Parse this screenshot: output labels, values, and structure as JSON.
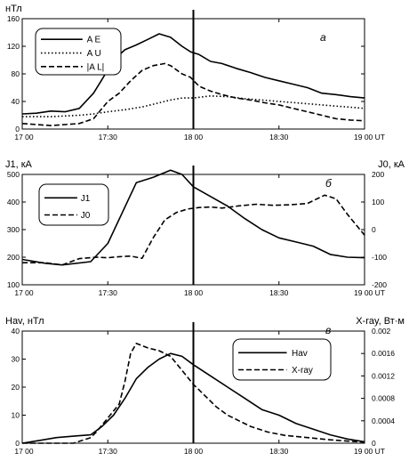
{
  "chart_data": [
    {
      "type": "line",
      "panel_label": "а",
      "ylabel": "нТл",
      "x_ticks": [
        "17 00",
        "17:30",
        "18 00",
        "18:30",
        "19 00 UT"
      ],
      "xlim": [
        0,
        120
      ],
      "ylim": [
        0,
        160
      ],
      "y_ticks": [
        "0",
        "40",
        "80",
        "120",
        "160"
      ],
      "y_tick_values": [
        0,
        40,
        80,
        120,
        160
      ],
      "legend": [
        "A E",
        "A U",
        "|A L|"
      ],
      "vertical_marker_x": 60,
      "series": [
        {
          "name": "A E",
          "style": "solid",
          "x": [
            0,
            5,
            10,
            15,
            20,
            25,
            28,
            32,
            36,
            40,
            44,
            48,
            52,
            56,
            59,
            62,
            66,
            70,
            75,
            80,
            85,
            90,
            95,
            100,
            105,
            110,
            115,
            120
          ],
          "y": [
            22,
            23,
            26,
            25,
            30,
            52,
            72,
            100,
            115,
            122,
            130,
            138,
            133,
            120,
            112,
            108,
            98,
            95,
            88,
            82,
            75,
            70,
            65,
            60,
            52,
            50,
            47,
            45
          ]
        },
        {
          "name": "A U",
          "style": "dotted",
          "x": [
            0,
            10,
            20,
            25,
            30,
            36,
            42,
            48,
            52,
            56,
            60,
            66,
            72,
            78,
            84,
            90,
            96,
            102,
            108,
            114,
            120
          ],
          "y": [
            18,
            18,
            20,
            22,
            25,
            28,
            32,
            38,
            42,
            45,
            45,
            48,
            47,
            44,
            42,
            40,
            38,
            36,
            34,
            32,
            30
          ]
        },
        {
          "name": "|A L|",
          "style": "dashed",
          "x": [
            0,
            10,
            20,
            25,
            30,
            34,
            38,
            42,
            46,
            50,
            52,
            56,
            59,
            62,
            66,
            70,
            75,
            80,
            85,
            90,
            95,
            100,
            105,
            110,
            115,
            120
          ],
          "y": [
            8,
            5,
            8,
            15,
            40,
            52,
            70,
            85,
            92,
            95,
            92,
            80,
            75,
            62,
            55,
            50,
            45,
            42,
            38,
            35,
            30,
            25,
            20,
            15,
            13,
            12
          ]
        }
      ]
    },
    {
      "type": "line",
      "panel_label": "б",
      "ylabel": "J1, кА",
      "ylabel_right": "J0, кА",
      "x_ticks": [
        "17 00",
        "17:30",
        "18 00",
        "18:30",
        "19 00 UT"
      ],
      "xlim": [
        0,
        120
      ],
      "ylim": [
        100,
        500
      ],
      "y_ticks": [
        "100",
        "200",
        "300",
        "400",
        "500"
      ],
      "y_tick_values": [
        100,
        200,
        300,
        400,
        500
      ],
      "ylim_right": [
        -200,
        200
      ],
      "y_ticks_right": [
        "-200",
        "-100",
        "0",
        "100",
        "200"
      ],
      "y_tick_values_right": [
        -200,
        -100,
        0,
        100,
        200
      ],
      "legend": [
        "J1",
        "J0"
      ],
      "vertical_marker_x": 60,
      "series": [
        {
          "name": "J1",
          "style": "solid",
          "axis": "left",
          "x": [
            0,
            8,
            14,
            24,
            30,
            40,
            46,
            52,
            56,
            60,
            66,
            72,
            78,
            84,
            90,
            96,
            102,
            108,
            114,
            120
          ],
          "y": [
            192,
            178,
            172,
            184,
            250,
            470,
            490,
            515,
            500,
            455,
            420,
            385,
            340,
            300,
            270,
            255,
            240,
            210,
            200,
            198
          ]
        },
        {
          "name": "J0",
          "style": "dashed",
          "axis": "right",
          "x": [
            0,
            8,
            14,
            20,
            26,
            30,
            34,
            38,
            42,
            46,
            50,
            54,
            58,
            62,
            66,
            70,
            76,
            82,
            88,
            94,
            100,
            106,
            110,
            114,
            120
          ],
          "y": [
            -120,
            -120,
            -128,
            -105,
            -100,
            -102,
            -98,
            -96,
            -104,
            -28,
            35,
            62,
            75,
            80,
            82,
            78,
            86,
            92,
            88,
            90,
            95,
            125,
            112,
            55,
            -20
          ]
        }
      ]
    },
    {
      "type": "line",
      "panel_label": "в",
      "ylabel": "Hav, нТл",
      "ylabel_right": "X-ray, Вт·м",
      "x_ticks": [
        "17 00",
        "17:30",
        "18 00",
        "18:30",
        "19 00 UT"
      ],
      "xlim": [
        0,
        120
      ],
      "ylim": [
        0,
        40
      ],
      "y_ticks": [
        "0",
        "10",
        "20",
        "30",
        "40"
      ],
      "y_tick_values": [
        0,
        10,
        20,
        30,
        40
      ],
      "ylim_right": [
        0,
        0.002
      ],
      "y_ticks_right": [
        "0",
        "0.0004",
        "0.0008",
        "0.0012",
        "0.0016",
        "0.002"
      ],
      "y_tick_values_right": [
        0,
        0.0004,
        0.0008,
        0.0012,
        0.0016,
        0.002
      ],
      "legend": [
        "Hav",
        "X-ray"
      ],
      "vertical_marker_x": 60,
      "series": [
        {
          "name": "Hav",
          "style": "solid",
          "axis": "left",
          "x": [
            0,
            6,
            12,
            18,
            24,
            28,
            32,
            36,
            40,
            44,
            48,
            52,
            56,
            60,
            66,
            72,
            78,
            84,
            90,
            96,
            102,
            108,
            114,
            120
          ],
          "y": [
            0,
            1,
            2,
            2.5,
            3,
            6,
            10,
            16,
            23,
            27,
            30,
            32,
            31,
            28,
            24,
            20,
            16,
            12,
            10,
            7,
            5,
            3,
            1.5,
            0.5
          ]
        },
        {
          "name": "X-ray",
          "style": "dashed",
          "axis": "right",
          "x": [
            0,
            6,
            12,
            18,
            24,
            26,
            30,
            34,
            36,
            38,
            40,
            44,
            48,
            52,
            56,
            60,
            64,
            68,
            72,
            76,
            80,
            86,
            92,
            100,
            108,
            116,
            120
          ],
          "y": [
            0,
            0,
            0,
            0,
            0.0001,
            0.0002,
            0.00045,
            0.0007,
            0.0011,
            0.0016,
            0.00178,
            0.0017,
            0.00165,
            0.00155,
            0.0013,
            0.00105,
            0.00085,
            0.00065,
            0.0005,
            0.0004,
            0.0003,
            0.0002,
            0.00014,
            0.0001,
            6e-05,
            3e-05,
            2e-05
          ]
        }
      ]
    }
  ]
}
